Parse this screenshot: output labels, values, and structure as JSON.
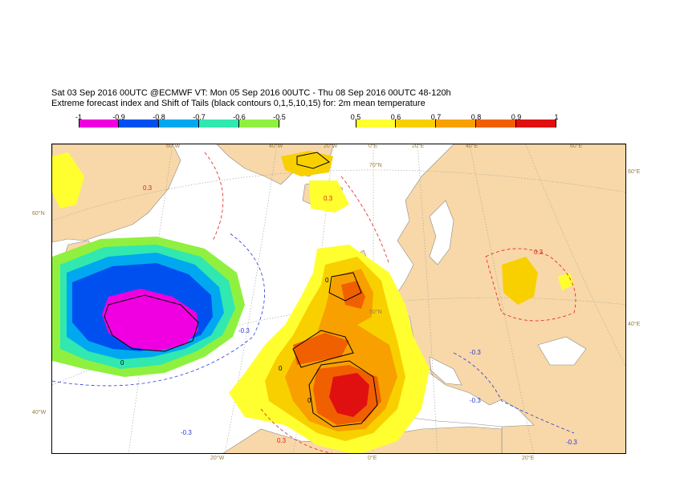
{
  "title_line1": "Sat 03 Sep 2016 00UTC @ECMWF VT: Mon 05 Sep 2016 00UTC - Thu 08 Sep 2016 00UTC  48-120h",
  "title_line2": "Extreme forecast index and Shift of Tails (black contours 0,1,5,10,15) for: 2m mean temperature",
  "legend_cold": {
    "ticks": [
      "-1",
      "-0.9",
      "-0.8",
      "-0.7",
      "-0.6",
      "-0.5"
    ],
    "colors": [
      "#f000e0",
      "#0050f0",
      "#00a8f0",
      "#30e8b0",
      "#90f040"
    ]
  },
  "legend_warm": {
    "ticks": [
      "0.5",
      "0.6",
      "0.7",
      "0.8",
      "0.9",
      "1"
    ],
    "colors": [
      "#ffff30",
      "#f8d000",
      "#f8a000",
      "#f06000",
      "#e01010"
    ]
  },
  "colors": {
    "land": "#f8d8a8",
    "sea": "#ffffff",
    "coastline": "#8a8a8a",
    "graticule": "#a0a0a0",
    "neg_contour": "#2a3ad8",
    "pos_contour": "#e02020",
    "sot_contour": "#000000"
  },
  "coord_labels": {
    "top": [
      "60°W",
      "40°W",
      "20°W",
      "0°E",
      "20°E",
      "40°E",
      "60°E"
    ],
    "bottom": [
      "20°W",
      "0°E",
      "20°E"
    ],
    "left": [
      "60°N",
      "40°W"
    ],
    "right": [
      "60°E",
      "40°E"
    ],
    "inner": [
      "70°N",
      "50°N"
    ]
  },
  "contour_labels": {
    "neg": [
      "-0.3",
      "-0.3",
      "-0.3",
      "-0.3",
      "-0.3"
    ],
    "pos": [
      "0.3",
      "0.3",
      "0.3",
      "0.3"
    ],
    "sot": [
      "0",
      "0",
      "0",
      "0"
    ]
  }
}
